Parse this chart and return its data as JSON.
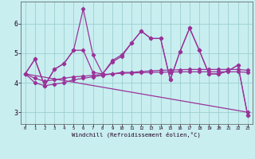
{
  "bg_color": "#c8eef0",
  "line_color": "#993399",
  "grid_color": "#9ecece",
  "xlabel": "Windchill (Refroidissement éolien,°C)",
  "xlim_min": -0.5,
  "xlim_max": 23.5,
  "ylim_min": 2.6,
  "ylim_max": 6.75,
  "x_ticks": [
    0,
    1,
    2,
    3,
    4,
    5,
    6,
    7,
    8,
    9,
    10,
    11,
    12,
    13,
    14,
    15,
    16,
    17,
    18,
    19,
    20,
    21,
    22,
    23
  ],
  "y_ticks": [
    3,
    4,
    5,
    6
  ],
  "line1_x": [
    0,
    1,
    2,
    3,
    4,
    5,
    6,
    7,
    8,
    9,
    10,
    11,
    12,
    13,
    14,
    15,
    16,
    17,
    18,
    19,
    20,
    21,
    22,
    23
  ],
  "line1_y": [
    4.3,
    4.8,
    3.9,
    4.45,
    4.65,
    5.1,
    6.5,
    4.95,
    4.3,
    4.7,
    4.9,
    5.35,
    5.75,
    5.5,
    5.5,
    4.1,
    5.05,
    5.85,
    5.1,
    4.3,
    4.3,
    4.4,
    4.6,
    2.9
  ],
  "line2_x": [
    0,
    1,
    2,
    3,
    4,
    5,
    6,
    7,
    8,
    9,
    10,
    11,
    12,
    13,
    14,
    15,
    16,
    17,
    18,
    19,
    20,
    21,
    22,
    23
  ],
  "line2_y": [
    4.3,
    4.8,
    3.9,
    4.45,
    4.65,
    5.1,
    5.1,
    4.35,
    4.3,
    4.75,
    4.95,
    5.35,
    5.75,
    5.5,
    5.5,
    4.1,
    5.05,
    5.85,
    5.1,
    4.3,
    4.3,
    4.4,
    4.6,
    2.9
  ],
  "line3_x": [
    0,
    23
  ],
  "line3_y": [
    4.3,
    3.0
  ],
  "line4_x": [
    0,
    1,
    2,
    3,
    4,
    5,
    6,
    7,
    8,
    9,
    10,
    11,
    12,
    13,
    14,
    15,
    16,
    17,
    18,
    19,
    20,
    21,
    22,
    23
  ],
  "line4_y": [
    4.3,
    4.0,
    3.9,
    3.95,
    4.0,
    4.1,
    4.15,
    4.2,
    4.25,
    4.3,
    4.35,
    4.35,
    4.38,
    4.4,
    4.42,
    4.43,
    4.44,
    4.45,
    4.45,
    4.45,
    4.45,
    4.45,
    4.45,
    4.42
  ],
  "line5_x": [
    0,
    1,
    2,
    3,
    4,
    5,
    6,
    7,
    8,
    9,
    10,
    11,
    12,
    13,
    14,
    15,
    16,
    17,
    18,
    19,
    20,
    21,
    22,
    23
  ],
  "line5_y": [
    4.3,
    4.15,
    4.05,
    4.1,
    4.15,
    4.2,
    4.22,
    4.25,
    4.28,
    4.3,
    4.32,
    4.33,
    4.34,
    4.35,
    4.36,
    4.36,
    4.37,
    4.37,
    4.37,
    4.37,
    4.37,
    4.37,
    4.37,
    4.35
  ]
}
